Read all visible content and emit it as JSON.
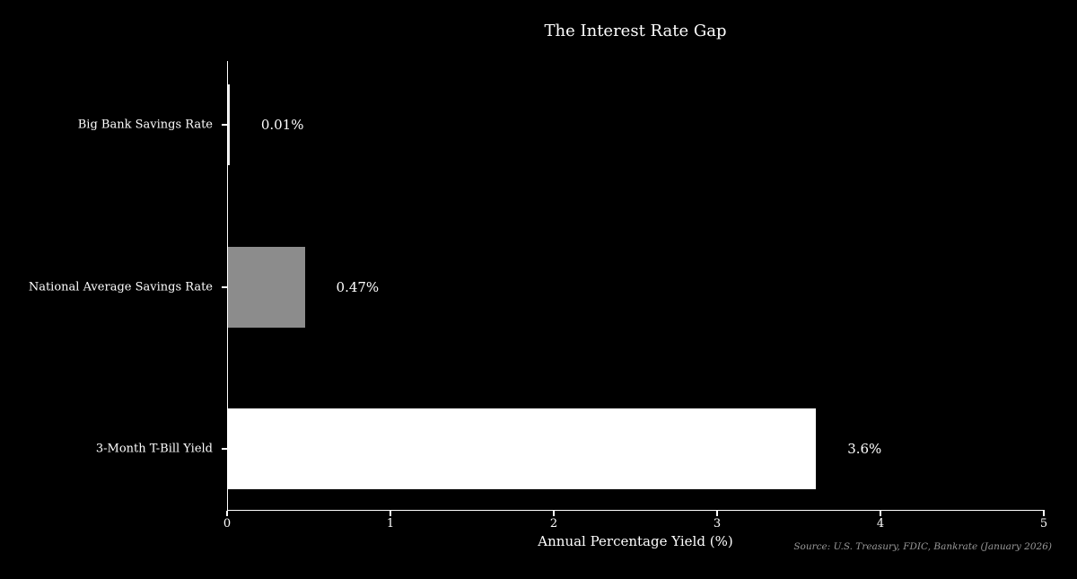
{
  "chart_data": {
    "type": "bar",
    "orientation": "horizontal",
    "title": "The Interest Rate Gap",
    "xlabel": "Annual Percentage Yield (%)",
    "categories": [
      "Big Bank Savings Rate",
      "National Average Savings Rate",
      "3-Month T-Bill Yield"
    ],
    "values": [
      0.01,
      0.47,
      3.6
    ],
    "value_labels": [
      "0.01%",
      "0.47%",
      "3.6%"
    ],
    "bar_colors": [
      "#eeeeee",
      "#8c8c8c",
      "#ffffff"
    ],
    "xlim": [
      0,
      5
    ],
    "xticks": [
      "0",
      "1",
      "2",
      "3",
      "4",
      "5"
    ],
    "grid": false,
    "legend": "none",
    "source_note": "Source: U.S. Treasury, FDIC, Bankrate (January 2026)",
    "background_color": "#000000",
    "text_color": "#ffffff",
    "source_text_color": "#999999"
  }
}
